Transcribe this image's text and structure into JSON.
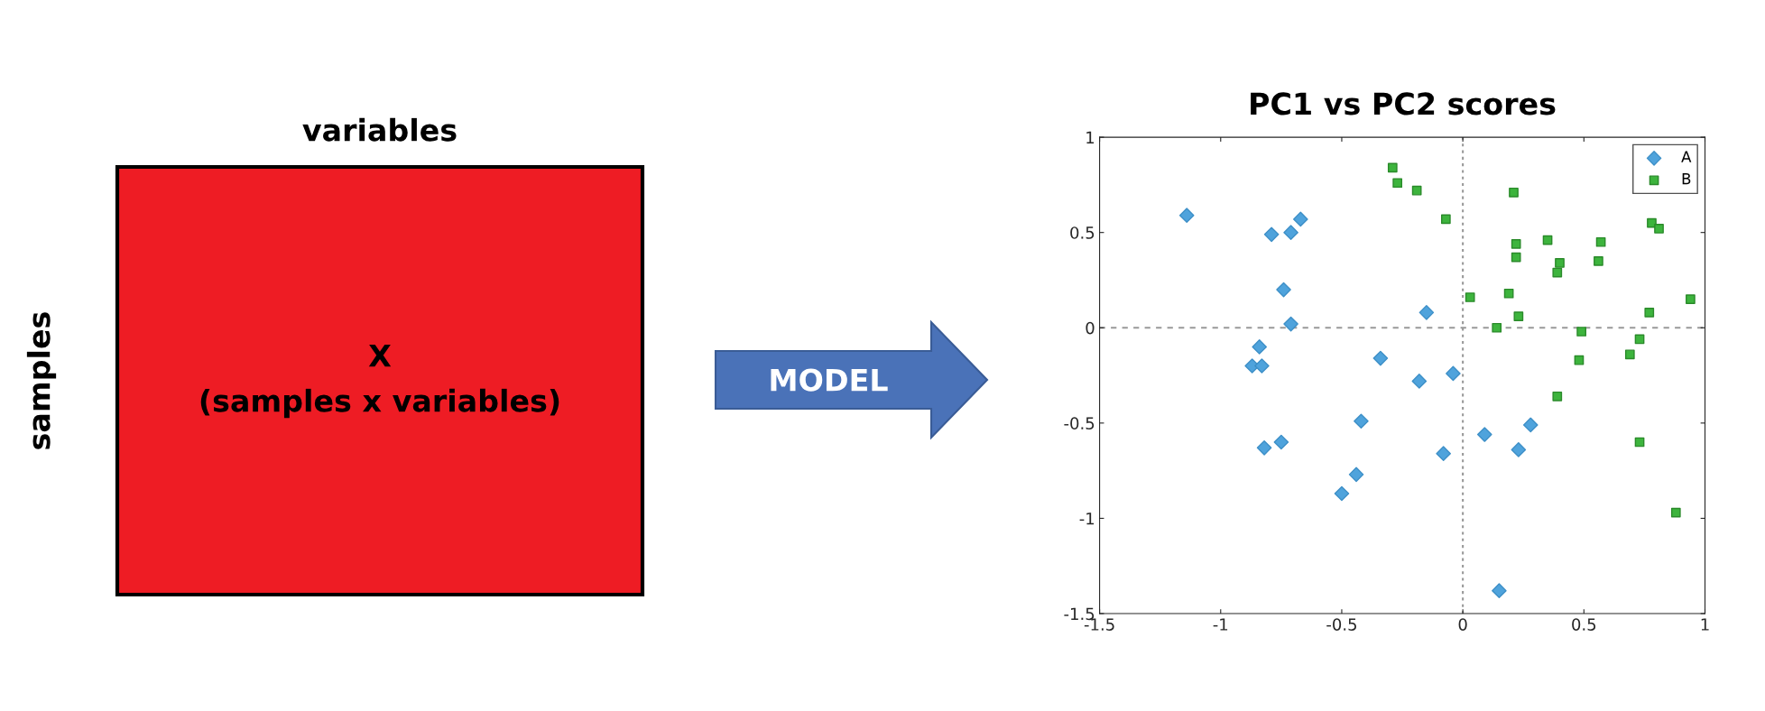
{
  "chart_data": {
    "type": "scatter",
    "title": "PC1 vs PC2 scores",
    "series": [
      {
        "name": "A",
        "color": "#4fa3dc",
        "marker": "diamond",
        "x": [
          -1.14,
          -0.79,
          -0.71,
          -0.67,
          -0.74,
          -0.71,
          -0.84,
          -0.87,
          -0.83,
          -0.34,
          -0.15,
          -0.04,
          -0.18,
          -0.82,
          -0.75,
          -0.42,
          -0.44,
          -0.5,
          -0.08,
          0.09,
          0.28,
          0.23,
          0.15
        ],
        "values": [
          0.59,
          0.49,
          0.5,
          0.57,
          0.2,
          0.02,
          -0.1,
          -0.2,
          -0.2,
          -0.16,
          0.08,
          -0.24,
          -0.28,
          -0.63,
          -0.6,
          -0.49,
          -0.77,
          -0.87,
          -0.66,
          -0.56,
          -0.51,
          -0.64,
          -1.38
        ]
      },
      {
        "name": "B",
        "color": "#3db43d",
        "marker": "square",
        "x": [
          -0.29,
          -0.27,
          -0.19,
          -0.07,
          0.21,
          0.22,
          0.22,
          0.35,
          0.4,
          0.39,
          0.57,
          0.56,
          0.78,
          0.81,
          0.03,
          0.19,
          0.23,
          0.14,
          0.94,
          0.77,
          0.49,
          0.73,
          0.69,
          0.48,
          0.39,
          0.73,
          0.88
        ],
        "values": [
          0.84,
          0.76,
          0.72,
          0.57,
          0.71,
          0.44,
          0.37,
          0.46,
          0.34,
          0.29,
          0.45,
          0.35,
          0.55,
          0.52,
          0.16,
          0.18,
          0.06,
          0.0,
          0.15,
          0.08,
          -0.02,
          -0.06,
          -0.14,
          -0.17,
          -0.36,
          -0.6,
          -0.97
        ]
      }
    ],
    "xlim": [
      -1.5,
      1
    ],
    "ylim": [
      -1.5,
      1
    ],
    "xticks": [
      -1.5,
      -1,
      -0.5,
      0,
      0.5,
      1
    ],
    "yticks": [
      -1.5,
      -1,
      -0.5,
      0,
      0.5,
      1
    ],
    "ref_lines": [
      {
        "axis": "x",
        "value": 0,
        "color": "#999999",
        "line_style": "dotted"
      },
      {
        "axis": "y",
        "value": 0,
        "color": "#999999",
        "line_style": "dashed"
      }
    ],
    "legend": "top right",
    "grid": false,
    "annotations": [
      "variables",
      "samples",
      "X",
      "(samples x variables)",
      "MODEL"
    ]
  }
}
